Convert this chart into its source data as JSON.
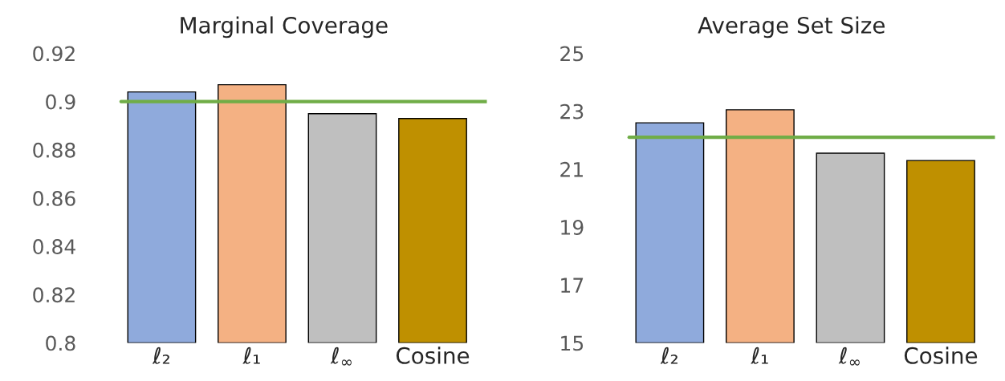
{
  "chart_data": [
    {
      "type": "bar",
      "title": "Marginal Coverage",
      "categories": [
        "ℓ₂",
        "ℓ₁",
        "ℓ$_{∞}$",
        "Cosine"
      ],
      "values": [
        0.904,
        0.907,
        0.895,
        0.893
      ],
      "colors": [
        "#8faadc",
        "#f4b183",
        "#bfbfbf",
        "#bf9000"
      ],
      "ylim": [
        0.8,
        0.92
      ],
      "yticks": [
        0.8,
        0.82,
        0.84,
        0.86,
        0.88,
        0.9,
        0.92
      ],
      "ref_lines": [
        {
          "axis": "y",
          "value": 0.9,
          "color": "#70ad47"
        }
      ],
      "grid": false
    },
    {
      "type": "bar",
      "title": "Average Set Size",
      "categories": [
        "ℓ₂",
        "ℓ₁",
        "ℓ$_{∞}$",
        "Cosine"
      ],
      "values": [
        22.6,
        23.05,
        21.55,
        21.3
      ],
      "colors": [
        "#8faadc",
        "#f4b183",
        "#bfbfbf",
        "#bf9000"
      ],
      "ylim": [
        15,
        25
      ],
      "yticks": [
        15,
        17,
        19,
        21,
        23,
        25
      ],
      "ref_lines": [
        {
          "axis": "y",
          "value": 22.1,
          "color": "#70ad47"
        }
      ],
      "grid": false
    }
  ]
}
